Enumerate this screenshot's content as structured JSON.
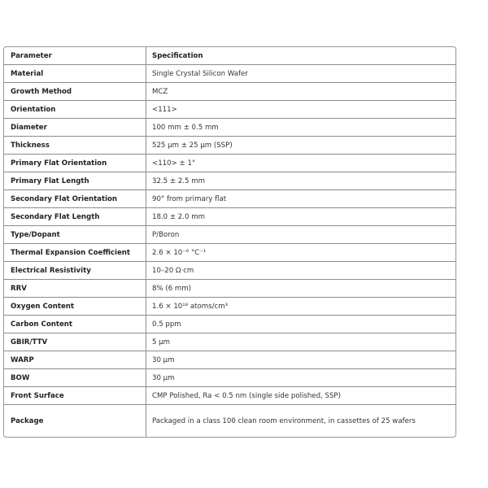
{
  "table": {
    "headers": [
      "Parameter",
      "Specification"
    ],
    "rows": [
      [
        "Material",
        "Single Crystal Silicon Wafer"
      ],
      [
        "Growth Method",
        "MCZ"
      ],
      [
        "Orientation",
        "<111>"
      ],
      [
        "Diameter",
        "100 mm ± 0.5 mm"
      ],
      [
        "Thickness",
        "525 µm ± 25 µm (SSP)"
      ],
      [
        "Primary Flat Orientation",
        "<110> ± 1°"
      ],
      [
        "Primary Flat Length",
        "32.5 ± 2.5 mm"
      ],
      [
        "Secondary Flat Orientation",
        "90° from primary flat"
      ],
      [
        "Secondary Flat Length",
        "18.0 ± 2.0 mm"
      ],
      [
        "Type/Dopant",
        "P/Boron"
      ],
      [
        "Thermal Expansion Coefficient",
        "2.6 × 10⁻⁶ °C⁻¹"
      ],
      [
        "Electrical Resistivity",
        "10–20 Ω·cm"
      ],
      [
        "RRV",
        "8% (6 mm)"
      ],
      [
        "Oxygen Content",
        "1.6 × 10¹⁸ atoms/cm³"
      ],
      [
        "Carbon Content",
        "0.5 ppm"
      ],
      [
        "GBIR/TTV",
        "5 µm"
      ],
      [
        "WARP",
        "30 µm"
      ],
      [
        "BOW",
        "30 µm"
      ],
      [
        "Front Surface",
        "CMP Polished, Ra < 0.5 nm (single side polished, SSP)"
      ],
      [
        "Package",
        "Packaged in a class 100 clean room environment, in cassettes of 25 wafers"
      ]
    ]
  }
}
